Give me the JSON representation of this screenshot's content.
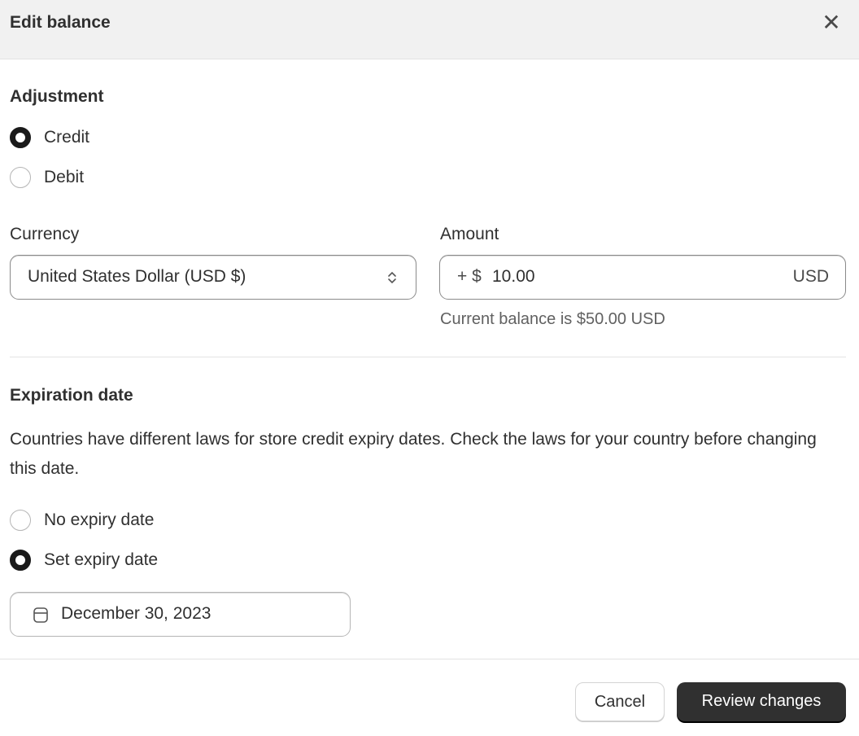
{
  "dialog": {
    "title": "Edit balance",
    "close_icon": "close-icon"
  },
  "adjustment": {
    "heading": "Adjustment",
    "options": [
      {
        "label": "Credit",
        "selected": true
      },
      {
        "label": "Debit",
        "selected": false
      }
    ]
  },
  "currency": {
    "label": "Currency",
    "value": "United States Dollar (USD $)",
    "icon": "select-chevrons-icon"
  },
  "amount": {
    "label": "Amount",
    "prefix": "+ $",
    "value": "10.00",
    "suffix": "USD",
    "help": "Current balance is $50.00 USD"
  },
  "expiration": {
    "heading": "Expiration date",
    "description": "Countries have different laws for store credit expiry dates. Check the laws for your country before changing this date.",
    "options": [
      {
        "label": "No expiry date",
        "selected": false
      },
      {
        "label": "Set expiry date",
        "selected": true
      }
    ],
    "date": "December 30, 2023",
    "icon": "calendar-icon"
  },
  "footer": {
    "cancel": "Cancel",
    "review": "Review changes"
  },
  "colors": {
    "primary": "#303030",
    "header_bg": "#f1f1f1"
  }
}
